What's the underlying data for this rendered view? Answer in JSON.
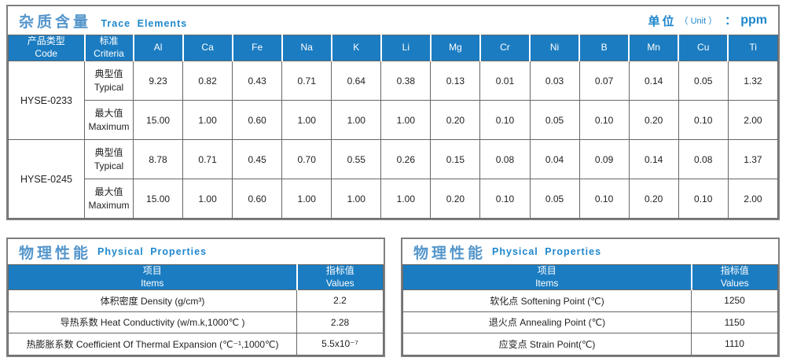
{
  "colors": {
    "header_bg": "#1b7cc1",
    "title_zh_color": "#5596cb",
    "title_en_color": "#1e87cc",
    "grid_line": "#666666",
    "outer_border": "#7f7f7f"
  },
  "trace": {
    "title_zh": "杂质含量",
    "title_en": "Trace Elements",
    "unit": {
      "label_zh": "单位",
      "paren": "（ Unit ）",
      "colon": "：",
      "value": "ppm"
    },
    "col_code": {
      "zh": "产品类型",
      "en": "Code"
    },
    "col_criteria": {
      "zh": "标准",
      "en": "Criteria"
    },
    "elements": [
      "Al",
      "Ca",
      "Fe",
      "Na",
      "K",
      "Li",
      "Mg",
      "Cr",
      "Ni",
      "B",
      "Mn",
      "Cu",
      "Ti"
    ],
    "groups": [
      {
        "code": "HYSE-0233",
        "rows": [
          {
            "label_zh": "典型值",
            "label_en": "Typical",
            "values": [
              "9.23",
              "0.82",
              "0.43",
              "0.71",
              "0.64",
              "0.38",
              "0.13",
              "0.01",
              "0.03",
              "0.07",
              "0.14",
              "0.05",
              "1.32"
            ]
          },
          {
            "label_zh": "最大值",
            "label_en": "Maximum",
            "values": [
              "15.00",
              "1.00",
              "0.60",
              "1.00",
              "1.00",
              "1.00",
              "0.20",
              "0.10",
              "0.05",
              "0.10",
              "0.20",
              "0.10",
              "2.00"
            ]
          }
        ]
      },
      {
        "code": "HYSE-0245",
        "rows": [
          {
            "label_zh": "典型值",
            "label_en": "Typical",
            "values": [
              "8.78",
              "0.71",
              "0.45",
              "0.70",
              "0.55",
              "0.26",
              "0.15",
              "0.08",
              "0.04",
              "0.09",
              "0.14",
              "0.08",
              "1.37"
            ]
          },
          {
            "label_zh": "最大值",
            "label_en": "Maximum",
            "values": [
              "15.00",
              "1.00",
              "0.60",
              "1.00",
              "1.00",
              "1.00",
              "0.20",
              "0.10",
              "0.05",
              "0.10",
              "0.20",
              "0.10",
              "2.00"
            ]
          }
        ]
      }
    ]
  },
  "physical_left": {
    "title_zh": "物理性能",
    "title_en": "Physical Properties",
    "col_items": {
      "zh": "项目",
      "en": "Items"
    },
    "col_values": {
      "zh": "指标值",
      "en": "Values"
    },
    "rows": [
      {
        "item": "体积密度 Density (g/cm³)",
        "value": "2.2"
      },
      {
        "item": "导热系数 Heat Conductivity (w/m.k,1000℃ )",
        "value": "2.28"
      },
      {
        "item": "热膨胀系数 Coefficient Of Thermal Expansion (℃⁻¹,1000℃)",
        "value": "5.5x10⁻⁷"
      }
    ]
  },
  "physical_right": {
    "title_zh": "物理性能",
    "title_en": "Physical Properties",
    "col_items": {
      "zh": "项目",
      "en": "Items"
    },
    "col_values": {
      "zh": "指标值",
      "en": "Values"
    },
    "rows": [
      {
        "item": "软化点 Softening Point (℃)",
        "value": "1250"
      },
      {
        "item": "退火点 Annealing Point (℃)",
        "value": "1150"
      },
      {
        "item": "应变点 Strain Point(℃)",
        "value": "1110"
      }
    ]
  }
}
